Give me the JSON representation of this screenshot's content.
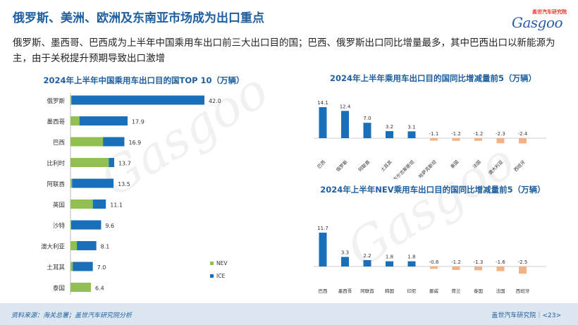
{
  "header": {
    "title": "俄罗斯、美洲、欧洲及东南亚市场成为出口重点",
    "subtitle": "俄罗斯、墨西哥、巴西成为上半年中国乘用车出口前三大出口目的国；巴西、俄罗斯出口同比增量最多，其中巴西出口以新能源为主，由于关税提升预期导致出口激增"
  },
  "logo": {
    "top_text": "盖世汽车研究院",
    "main_text": "Gasgoo"
  },
  "watermark": "Gasgoo",
  "chart_data": [
    {
      "type": "bar",
      "orientation": "horizontal",
      "stacked": true,
      "title": "2024年上半年中国乘用车出口目的国TOP 10（万辆）",
      "categories": [
        "俄罗斯",
        "墨西哥",
        "巴西",
        "比利时",
        "阿联酋",
        "英国",
        "沙特",
        "澳大利亚",
        "土耳其",
        "泰国"
      ],
      "series": [
        {
          "name": "NEV",
          "color": "#92c050",
          "values": [
            0.3,
            2.8,
            10.2,
            12.0,
            0.5,
            7.0,
            0.2,
            2.0,
            0.7,
            6.4
          ]
        },
        {
          "name": "ICE",
          "color": "#1a6fba",
          "values": [
            41.7,
            15.1,
            6.7,
            1.7,
            13.0,
            4.1,
            9.4,
            6.1,
            6.3,
            0.0
          ]
        }
      ],
      "totals": [
        "42.0",
        "17.9",
        "16.9",
        "13.7",
        "13.5",
        "11.1",
        "9.6",
        "8.1",
        "7.0",
        "6.4"
      ],
      "legend": [
        "NEV",
        "ICE"
      ]
    },
    {
      "type": "bar",
      "title": "2024年上半年乘用车出口目的国同比增减量前5（万辆）",
      "categories": [
        "巴西",
        "俄罗斯",
        "阿联酋",
        "土耳其",
        "吉尔吉斯斯坦",
        "哈萨克斯坦",
        "泰国",
        "法国",
        "澳大利亚",
        "西班牙"
      ],
      "values": [
        14.1,
        12.4,
        7.0,
        3.2,
        3.1,
        -1.1,
        -1.2,
        -1.2,
        -2.3,
        -2.4
      ],
      "labels": [
        "14.1",
        "12.4",
        "7.0",
        "3.2",
        "3.1",
        "-1.1",
        "-1.2",
        "-1.2",
        "-2.3",
        "-2.4"
      ],
      "positive_color": "#1a6fba",
      "negative_color": "#f4b183"
    },
    {
      "type": "bar",
      "title": "2024年上半年NEV乘用车出口目的国同比增减量前5（万辆）",
      "categories": [
        "巴西",
        "墨西哥",
        "阿联酋",
        "韩国",
        "印尼",
        "挪威",
        "荷兰",
        "泰国",
        "法国",
        "西班牙"
      ],
      "values": [
        11.7,
        3.3,
        2.2,
        1.8,
        1.8,
        -0.8,
        -1.2,
        -1.3,
        -1.6,
        -2.5
      ],
      "labels": [
        "11.7",
        "3.3",
        "2.2",
        "1.8",
        "1.8",
        "-0.8",
        "-1.2",
        "-1.3",
        "-1.6",
        "-2.5"
      ],
      "positive_color": "#1a6fba",
      "negative_color": "#f4b183"
    }
  ],
  "footer": {
    "source": "资料来源：海关总署；盖世汽车研究院分析",
    "brand": "盖世汽车研究院",
    "page": "<23>"
  }
}
